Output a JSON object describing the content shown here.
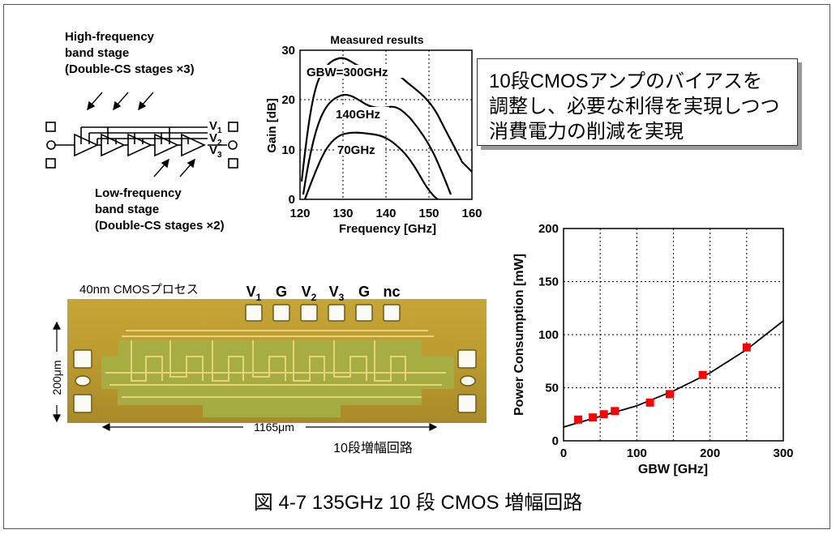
{
  "circuit": {
    "high_label": [
      "High-frequency",
      "band stage",
      "(Double-CS stages  ×3)"
    ],
    "low_label": [
      "Low-frequency",
      "band stage",
      "(Double-CS stages  ×2)"
    ],
    "bias": [
      "V1",
      "V2",
      "V3"
    ]
  },
  "gain_chart": {
    "title": "Measured results",
    "xlabel": "Frequency [GHz]",
    "ylabel": "Gain [dB]",
    "x_ticks": [
      "120",
      "130",
      "140",
      "150",
      "160"
    ],
    "y_ticks": [
      "0",
      "10",
      "20",
      "30"
    ],
    "curve_labels": [
      "GBW=300GHz",
      "140GHz",
      "70GHz"
    ]
  },
  "callout_lines": [
    "10段CMOSアンプのバイアスを",
    "調整し、必要な利得を実現しつつ",
    "消費電力の削減を実現"
  ],
  "chip": {
    "process": "40nm CMOSプロセス",
    "pads": [
      "V1",
      "G",
      "V2",
      "V3",
      "G",
      "nc"
    ],
    "height_label": "200μm",
    "width_label": "1165μm",
    "amp_label": "10段増幅回路"
  },
  "chart_data": {
    "type": "scatter",
    "xlabel": "GBW [GHz]",
    "ylabel": "Power Consumption [mW]",
    "xlim": [
      0,
      300
    ],
    "ylim": [
      0,
      200
    ],
    "x_ticks": [
      "0",
      "100",
      "200",
      "300"
    ],
    "y_ticks": [
      "0",
      "50",
      "100",
      "150",
      "200"
    ],
    "grid": true,
    "points": [
      [
        20,
        20
      ],
      [
        40,
        22
      ],
      [
        55,
        25
      ],
      [
        70,
        28
      ],
      [
        118,
        36
      ],
      [
        145,
        44
      ],
      [
        190,
        62
      ],
      [
        250,
        88
      ]
    ],
    "fit_curve": [
      [
        0,
        13
      ],
      [
        50,
        23
      ],
      [
        100,
        33
      ],
      [
        150,
        47
      ],
      [
        200,
        64
      ],
      [
        250,
        86
      ],
      [
        300,
        113
      ]
    ],
    "marker_color": "#ff0000"
  },
  "caption": "図 4-7 135GHz 10 段 CMOS 増幅回路"
}
